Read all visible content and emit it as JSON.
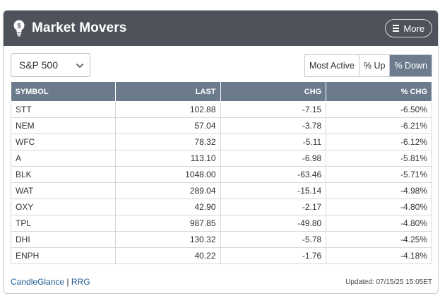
{
  "header": {
    "title": "Market Movers",
    "more_label": "More"
  },
  "index_select": {
    "value": "S&P 500"
  },
  "tabs": [
    {
      "label": "Most Active",
      "active": false
    },
    {
      "label": "% Up",
      "active": false
    },
    {
      "label": "% Down",
      "active": true
    }
  ],
  "table": {
    "columns": [
      "SYMBOL",
      "LAST",
      "CHG",
      "% CHG"
    ],
    "rows": [
      {
        "symbol": "STT",
        "last": "102.88",
        "chg": "-7.15",
        "pct": "-6.50%"
      },
      {
        "symbol": "NEM",
        "last": "57.04",
        "chg": "-3.78",
        "pct": "-6.21%"
      },
      {
        "symbol": "WFC",
        "last": "78.32",
        "chg": "-5.11",
        "pct": "-6.12%"
      },
      {
        "symbol": "A",
        "last": "113.10",
        "chg": "-6.98",
        "pct": "-5.81%"
      },
      {
        "symbol": "BLK",
        "last": "1048.00",
        "chg": "-63.46",
        "pct": "-5.71%"
      },
      {
        "symbol": "WAT",
        "last": "289.04",
        "chg": "-15.14",
        "pct": "-4.98%"
      },
      {
        "symbol": "OXY",
        "last": "42.90",
        "chg": "-2.17",
        "pct": "-4.80%"
      },
      {
        "symbol": "TPL",
        "last": "987.85",
        "chg": "-49.80",
        "pct": "-4.80%"
      },
      {
        "symbol": "DHI",
        "last": "130.32",
        "chg": "-5.78",
        "pct": "-4.25%"
      },
      {
        "symbol": "ENPH",
        "last": "40.22",
        "chg": "-1.76",
        "pct": "-4.18%"
      }
    ]
  },
  "footer": {
    "link_candleglance": "CandleGlance",
    "separator": "|",
    "link_rrg": "RRG",
    "updated": "Updated: 07/15/25 15:05ET"
  },
  "colors": {
    "header_bg": "#4d525b",
    "table_header_bg": "#6b7b8c",
    "negative": "#c00018",
    "link": "#1f5a93"
  }
}
